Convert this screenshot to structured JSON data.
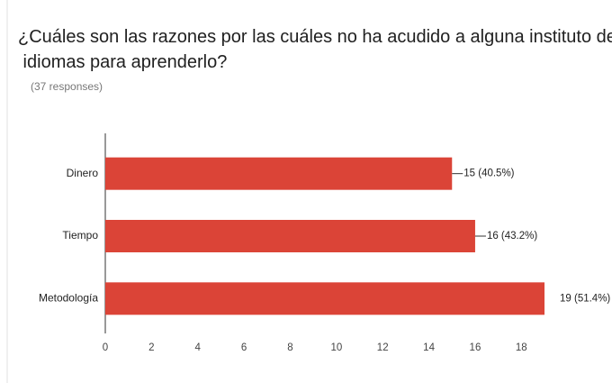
{
  "chart_data": {
    "type": "bar",
    "orientation": "horizontal",
    "title": "¿Cuáles son las razones por las cuáles no ha acudido a alguna instituto de idiomas para aprenderlo?",
    "subtitle": "(37 responses)",
    "categories": [
      "Dinero",
      "Tiempo",
      "Metodología"
    ],
    "values": [
      15,
      16,
      19
    ],
    "value_labels": [
      "15 (40.5%)",
      "16 (43.2%)",
      "19 (51.4%)"
    ],
    "color": "#db4437",
    "xlim": [
      0,
      19
    ],
    "xticks": [
      0,
      2,
      4,
      6,
      8,
      10,
      12,
      14,
      16,
      18
    ],
    "grid": false
  }
}
